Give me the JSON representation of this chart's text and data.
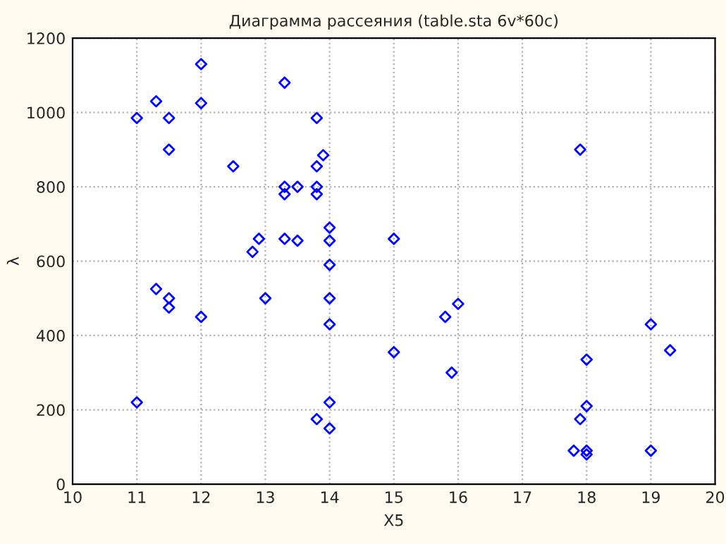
{
  "chart_data": {
    "type": "scatter",
    "title": "Диаграмма рассеяния (table.sta 6v*60c)",
    "xlabel": "X5",
    "ylabel": "λ",
    "x": [
      11,
      11.3,
      11.5,
      11.5,
      12,
      12,
      12.5,
      13.3,
      13.8,
      13.9,
      13.8,
      13.3,
      13.5,
      13.8,
      13.3,
      13.8,
      12.9,
      13.3,
      13.5,
      12.8,
      14,
      14,
      14,
      14,
      14,
      14,
      14,
      13.8,
      13,
      11.3,
      11.5,
      11.5,
      12,
      11,
      15,
      15,
      15.8,
      16,
      15.9,
      17.9,
      18,
      18,
      17.9,
      17.8,
      18,
      18,
      19,
      19.3,
      19
    ],
    "series": [
      {
        "color": "#0000ff",
        "values": [
          985,
          1030,
          985,
          900,
          1130,
          1025,
          855,
          1080,
          985,
          885,
          855,
          800,
          800,
          800,
          780,
          780,
          660,
          660,
          655,
          625,
          690,
          655,
          590,
          500,
          430,
          220,
          150,
          175,
          500,
          525,
          500,
          475,
          450,
          220,
          660,
          355,
          450,
          485,
          300,
          900,
          335,
          210,
          175,
          90,
          90,
          80,
          430,
          360,
          90
        ]
      }
    ],
    "xlim": [
      10,
      20
    ],
    "ylim": [
      0,
      1200
    ],
    "xticks": [
      10,
      11,
      12,
      13,
      14,
      15,
      16,
      17,
      18,
      19,
      20
    ],
    "yticks": [
      0,
      200,
      400,
      600,
      800,
      1000,
      1200
    ],
    "grid": true,
    "marker": "diamond"
  }
}
